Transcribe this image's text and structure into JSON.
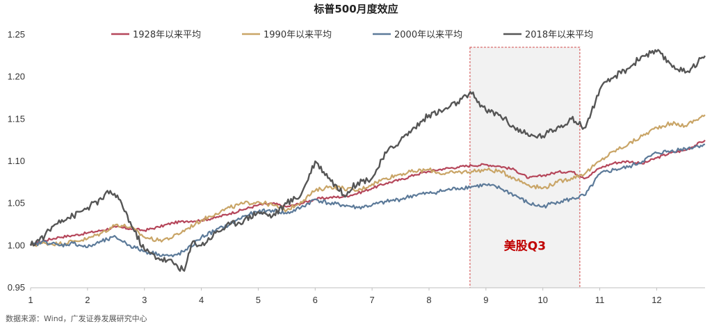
{
  "chart_data": {
    "type": "line",
    "title": "标普500月度效应",
    "xlabel": "",
    "ylabel": "",
    "xlim": [
      1,
      12.85
    ],
    "ylim": [
      0.95,
      1.25
    ],
    "x_ticks": [
      "1",
      "2",
      "3",
      "4",
      "5",
      "6",
      "7",
      "8",
      "9",
      "10",
      "11",
      "12"
    ],
    "y_ticks": [
      "0.95",
      "1.00",
      "1.05",
      "1.10",
      "1.15",
      "1.20",
      "1.25"
    ],
    "grid": false,
    "legend_position": "top",
    "series": [
      {
        "name": "1928年以来平均",
        "color": "#b5465a",
        "x": [
          1,
          1.25,
          1.5,
          1.75,
          2,
          2.25,
          2.5,
          2.75,
          3,
          3.25,
          3.5,
          3.75,
          4,
          4.25,
          4.5,
          4.75,
          5,
          5.25,
          5.5,
          5.75,
          6,
          6.25,
          6.5,
          6.75,
          7,
          7.25,
          7.5,
          7.75,
          8,
          8.25,
          8.5,
          8.75,
          9,
          9.25,
          9.5,
          9.75,
          10,
          10.25,
          10.5,
          10.75,
          11,
          11.25,
          11.5,
          11.75,
          12,
          12.25,
          12.5,
          12.85
        ],
        "values": [
          1.0,
          1.006,
          1.01,
          1.012,
          1.015,
          1.018,
          1.022,
          1.02,
          1.018,
          1.022,
          1.027,
          1.029,
          1.03,
          1.033,
          1.038,
          1.043,
          1.048,
          1.05,
          1.046,
          1.05,
          1.055,
          1.057,
          1.058,
          1.062,
          1.068,
          1.074,
          1.078,
          1.084,
          1.088,
          1.091,
          1.093,
          1.095,
          1.096,
          1.094,
          1.09,
          1.08,
          1.083,
          1.087,
          1.088,
          1.08,
          1.092,
          1.098,
          1.1,
          1.097,
          1.104,
          1.11,
          1.113,
          1.125
        ]
      },
      {
        "name": "1990年以来平均",
        "color": "#c9a567",
        "x": [
          1,
          1.25,
          1.5,
          1.75,
          2,
          2.25,
          2.5,
          2.75,
          3,
          3.25,
          3.5,
          3.75,
          4,
          4.25,
          4.5,
          4.75,
          5,
          5.25,
          5.5,
          5.75,
          6,
          6.25,
          6.5,
          6.75,
          7,
          7.25,
          7.5,
          7.75,
          8,
          8.25,
          8.5,
          8.75,
          9,
          9.25,
          9.5,
          9.75,
          10,
          10.25,
          10.5,
          10.75,
          11,
          11.25,
          11.5,
          11.75,
          12,
          12.25,
          12.5,
          12.85
        ],
        "values": [
          1.0,
          1.003,
          1.002,
          1.005,
          1.008,
          1.015,
          1.025,
          1.022,
          1.01,
          1.006,
          1.01,
          1.02,
          1.03,
          1.038,
          1.045,
          1.05,
          1.052,
          1.048,
          1.042,
          1.052,
          1.065,
          1.07,
          1.068,
          1.065,
          1.073,
          1.08,
          1.085,
          1.088,
          1.09,
          1.085,
          1.087,
          1.088,
          1.09,
          1.088,
          1.08,
          1.072,
          1.068,
          1.075,
          1.08,
          1.086,
          1.1,
          1.112,
          1.12,
          1.13,
          1.14,
          1.145,
          1.142,
          1.155
        ]
      },
      {
        "name": "2000年以来平均",
        "color": "#5c7a99",
        "x": [
          1,
          1.25,
          1.5,
          1.75,
          2,
          2.25,
          2.5,
          2.75,
          3,
          3.25,
          3.5,
          3.75,
          4,
          4.25,
          4.5,
          4.75,
          5,
          5.25,
          5.5,
          5.75,
          6,
          6.25,
          6.5,
          6.75,
          7,
          7.25,
          7.5,
          7.75,
          8,
          8.25,
          8.5,
          8.75,
          9,
          9.25,
          9.5,
          9.75,
          10,
          10.25,
          10.5,
          10.75,
          11,
          11.25,
          11.5,
          11.75,
          12,
          12.25,
          12.5,
          12.85
        ],
        "values": [
          1.0,
          1.005,
          1.0,
          1.003,
          0.998,
          1.005,
          1.01,
          1.0,
          0.993,
          0.99,
          0.987,
          0.995,
          1.01,
          1.018,
          1.025,
          1.035,
          1.04,
          1.042,
          1.038,
          1.045,
          1.055,
          1.05,
          1.048,
          1.045,
          1.048,
          1.052,
          1.055,
          1.06,
          1.062,
          1.065,
          1.068,
          1.07,
          1.072,
          1.068,
          1.06,
          1.05,
          1.046,
          1.052,
          1.055,
          1.06,
          1.085,
          1.09,
          1.093,
          1.1,
          1.11,
          1.112,
          1.115,
          1.12
        ]
      },
      {
        "name": "2018年以来平均",
        "color": "#555555",
        "x": [
          1,
          1.25,
          1.5,
          1.75,
          2,
          2.25,
          2.4,
          2.6,
          2.8,
          3,
          3.25,
          3.5,
          3.7,
          3.85,
          4,
          4.25,
          4.5,
          4.75,
          5,
          5.25,
          5.5,
          5.75,
          6,
          6.25,
          6.5,
          6.75,
          7,
          7.25,
          7.5,
          7.75,
          8,
          8.25,
          8.5,
          8.75,
          9,
          9.25,
          9.5,
          9.75,
          10,
          10.25,
          10.5,
          10.75,
          11,
          11.25,
          11.5,
          11.75,
          12,
          12.25,
          12.5,
          12.85
        ],
        "values": [
          1.0,
          1.012,
          1.03,
          1.035,
          1.045,
          1.055,
          1.065,
          1.05,
          1.02,
          0.995,
          0.985,
          0.98,
          0.97,
          1.005,
          1.0,
          1.015,
          1.025,
          1.03,
          1.04,
          1.035,
          1.05,
          1.06,
          1.1,
          1.08,
          1.06,
          1.075,
          1.08,
          1.11,
          1.125,
          1.14,
          1.155,
          1.16,
          1.17,
          1.18,
          1.16,
          1.155,
          1.14,
          1.13,
          1.13,
          1.14,
          1.15,
          1.14,
          1.185,
          1.2,
          1.21,
          1.225,
          1.23,
          1.215,
          1.205,
          1.225
        ]
      }
    ],
    "annotations": [
      {
        "label": "美股Q3",
        "x_range": [
          8.72,
          10.65
        ],
        "y_range": [
          0.95,
          1.25
        ]
      }
    ],
    "source": "数据来源：Wind，广发证券发展研究中心"
  }
}
